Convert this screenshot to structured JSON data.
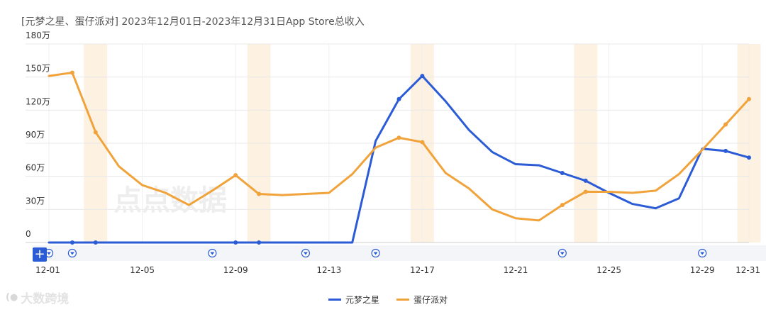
{
  "title": "[元梦之星、蛋仔派对] 2023年12月01日-2023年12月31日App Store总收入",
  "watermark": "点点数据",
  "source_logo": "大数跨境",
  "source_mark": "(●",
  "plus_label": "+",
  "colors": {
    "blue": "#2b5cd6",
    "orange": "#f1a33b",
    "band": "#fdf1e2",
    "grid": "#e8e8e8"
  },
  "chart_data": {
    "type": "line",
    "title": "[元梦之星、蛋仔派对] 2023年12月01日-2023年12月31日App Store总收入",
    "xlabel": "",
    "ylabel": "",
    "ylim": [
      0,
      180
    ],
    "y_ticks": [
      {
        "v": 0,
        "label": "0"
      },
      {
        "v": 30,
        "label": "30万"
      },
      {
        "v": 60,
        "label": "60万"
      },
      {
        "v": 90,
        "label": "90万"
      },
      {
        "v": 120,
        "label": "120万"
      },
      {
        "v": 150,
        "label": "150万"
      },
      {
        "v": 180,
        "label": "180万"
      }
    ],
    "x_ticks": [
      {
        "day": 1,
        "label": "12-01"
      },
      {
        "day": 5,
        "label": "12-05"
      },
      {
        "day": 9,
        "label": "12-09"
      },
      {
        "day": 13,
        "label": "12-13"
      },
      {
        "day": 17,
        "label": "12-17"
      },
      {
        "day": 21,
        "label": "12-21"
      },
      {
        "day": 25,
        "label": "12-25"
      },
      {
        "day": 29,
        "label": "12-29"
      },
      {
        "day": 31,
        "label": "12-31"
      }
    ],
    "weekend_bands": [
      [
        2.5,
        3.5
      ],
      [
        9.5,
        10.5
      ],
      [
        16.5,
        17.5
      ],
      [
        23.5,
        24.5
      ],
      [
        30.5,
        31.5
      ]
    ],
    "event_days": [
      1,
      2,
      8,
      12,
      15,
      23,
      29
    ],
    "days": [
      1,
      2,
      3,
      4,
      5,
      6,
      7,
      8,
      9,
      10,
      11,
      12,
      13,
      14,
      15,
      16,
      17,
      18,
      19,
      20,
      21,
      22,
      23,
      24,
      25,
      26,
      27,
      28,
      29,
      30,
      31
    ],
    "series": [
      {
        "name": "元梦之星",
        "color": "#2b5cd6",
        "values": [
          0,
          0,
          0,
          0,
          0,
          0,
          0,
          0,
          0,
          0,
          0,
          0,
          0,
          0,
          92,
          130,
          151,
          128,
          102,
          82,
          71,
          70,
          63,
          56,
          45,
          35,
          31,
          40,
          85,
          83,
          77
        ],
        "markers": [
          2,
          3,
          9,
          10,
          16,
          17,
          23,
          24,
          30,
          31
        ]
      },
      {
        "name": "蛋仔派对",
        "color": "#f1a33b",
        "values": [
          151,
          154,
          100,
          69,
          52,
          45,
          34,
          47,
          61,
          44,
          43,
          44,
          45,
          62,
          86,
          95,
          91,
          63,
          49,
          30,
          22,
          20,
          34,
          46,
          46,
          45,
          47,
          62,
          84,
          107,
          130
        ],
        "markers": [
          2,
          3,
          9,
          10,
          16,
          17,
          23,
          24,
          30,
          31
        ]
      }
    ]
  },
  "legend": [
    {
      "name": "元梦之星",
      "color": "#2b5cd6"
    },
    {
      "name": "蛋仔派对",
      "color": "#f1a33b"
    }
  ]
}
